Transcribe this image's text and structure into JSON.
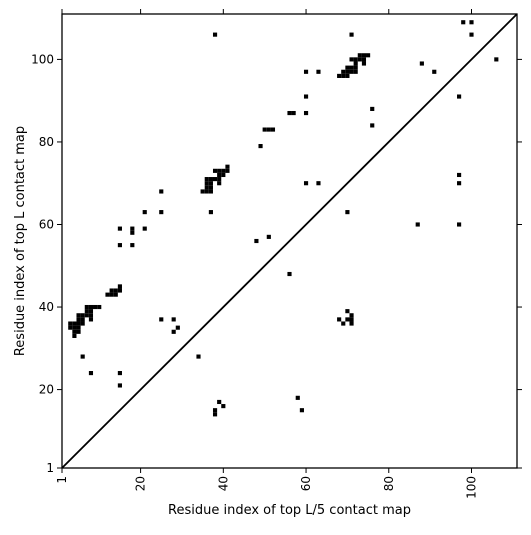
{
  "chart_data": {
    "type": "scatter",
    "title": "",
    "xlabel": "Residue index of top L/5 contact map",
    "ylabel": "Residue index of top L contact map",
    "xlim": [
      1,
      111
    ],
    "ylim": [
      1,
      111
    ],
    "x_ticks": [
      1,
      20,
      40,
      60,
      80,
      100
    ],
    "y_ticks": [
      1,
      20,
      40,
      60,
      80,
      100
    ],
    "x_tick_labels": [
      "1",
      "20",
      "40",
      "60",
      "80",
      "100"
    ],
    "y_tick_labels": [
      "1",
      "20",
      "40",
      "60",
      "80",
      "100"
    ],
    "x_tick_rotation_deg": -90,
    "grid": false,
    "legend": "none",
    "diagonal_line": {
      "from": [
        1,
        1
      ],
      "to": [
        111,
        111
      ]
    },
    "marker": "filled square",
    "marker_color": "#000000",
    "series": [
      {
        "points": [
          [
            3,
            36
          ],
          [
            3,
            35
          ],
          [
            4,
            36
          ],
          [
            4,
            35
          ],
          [
            4,
            34
          ],
          [
            4,
            33
          ],
          [
            5,
            36
          ],
          [
            5,
            35
          ],
          [
            5,
            34
          ],
          [
            5,
            37
          ],
          [
            5,
            38
          ],
          [
            6,
            38
          ],
          [
            6,
            37
          ],
          [
            6,
            36
          ],
          [
            6,
            28
          ],
          [
            7,
            38
          ],
          [
            7,
            39
          ],
          [
            7,
            40
          ],
          [
            8,
            40
          ],
          [
            8,
            39
          ],
          [
            8,
            38
          ],
          [
            8,
            37
          ],
          [
            8,
            24
          ],
          [
            9,
            40
          ],
          [
            10,
            40
          ],
          [
            12,
            43
          ],
          [
            13,
            43
          ],
          [
            13,
            44
          ],
          [
            14,
            43
          ],
          [
            14,
            44
          ],
          [
            15,
            44
          ],
          [
            15,
            45
          ],
          [
            15,
            55
          ],
          [
            15,
            59
          ],
          [
            15,
            24
          ],
          [
            15,
            21
          ],
          [
            18,
            55
          ],
          [
            18,
            58
          ],
          [
            18,
            59
          ],
          [
            21,
            59
          ],
          [
            21,
            63
          ],
          [
            25,
            68
          ],
          [
            25,
            63
          ],
          [
            25,
            37
          ],
          [
            28,
            37
          ],
          [
            28,
            34
          ],
          [
            29,
            35
          ],
          [
            34,
            28
          ],
          [
            35,
            68
          ],
          [
            36,
            68
          ],
          [
            36,
            69
          ],
          [
            36,
            70
          ],
          [
            36,
            71
          ],
          [
            37,
            68
          ],
          [
            37,
            69
          ],
          [
            37,
            70
          ],
          [
            37,
            71
          ],
          [
            37,
            63
          ],
          [
            38,
            71
          ],
          [
            38,
            73
          ],
          [
            38,
            106
          ],
          [
            38,
            15
          ],
          [
            38,
            14
          ],
          [
            39,
            70
          ],
          [
            39,
            71
          ],
          [
            39,
            72
          ],
          [
            39,
            73
          ],
          [
            39,
            17
          ],
          [
            40,
            72
          ],
          [
            40,
            73
          ],
          [
            40,
            16
          ],
          [
            41,
            73
          ],
          [
            41,
            74
          ],
          [
            48,
            56
          ],
          [
            49,
            79
          ],
          [
            50,
            83
          ],
          [
            51,
            83
          ],
          [
            51,
            57
          ],
          [
            52,
            83
          ],
          [
            56,
            87
          ],
          [
            56,
            48
          ],
          [
            57,
            87
          ],
          [
            58,
            18
          ],
          [
            59,
            15
          ],
          [
            60,
            97
          ],
          [
            60,
            91
          ],
          [
            60,
            87
          ],
          [
            60,
            70
          ],
          [
            63,
            97
          ],
          [
            63,
            70
          ],
          [
            68,
            96
          ],
          [
            68,
            37
          ],
          [
            69,
            96
          ],
          [
            69,
            97
          ],
          [
            69,
            36
          ],
          [
            70,
            96
          ],
          [
            70,
            97
          ],
          [
            70,
            98
          ],
          [
            70,
            63
          ],
          [
            70,
            39
          ],
          [
            70,
            37
          ],
          [
            71,
            97
          ],
          [
            71,
            98
          ],
          [
            71,
            100
          ],
          [
            71,
            106
          ],
          [
            71,
            38
          ],
          [
            71,
            37
          ],
          [
            71,
            36
          ],
          [
            72,
            97
          ],
          [
            72,
            98
          ],
          [
            72,
            99
          ],
          [
            72,
            100
          ],
          [
            73,
            100
          ],
          [
            73,
            101
          ],
          [
            74,
            99
          ],
          [
            74,
            100
          ],
          [
            74,
            101
          ],
          [
            75,
            101
          ],
          [
            76,
            88
          ],
          [
            76,
            84
          ],
          [
            87,
            60
          ],
          [
            88,
            99
          ],
          [
            91,
            97
          ],
          [
            97,
            91
          ],
          [
            97,
            72
          ],
          [
            97,
            70
          ],
          [
            97,
            60
          ],
          [
            98,
            109
          ],
          [
            100,
            109
          ],
          [
            100,
            106
          ],
          [
            106,
            100
          ]
        ]
      }
    ]
  }
}
